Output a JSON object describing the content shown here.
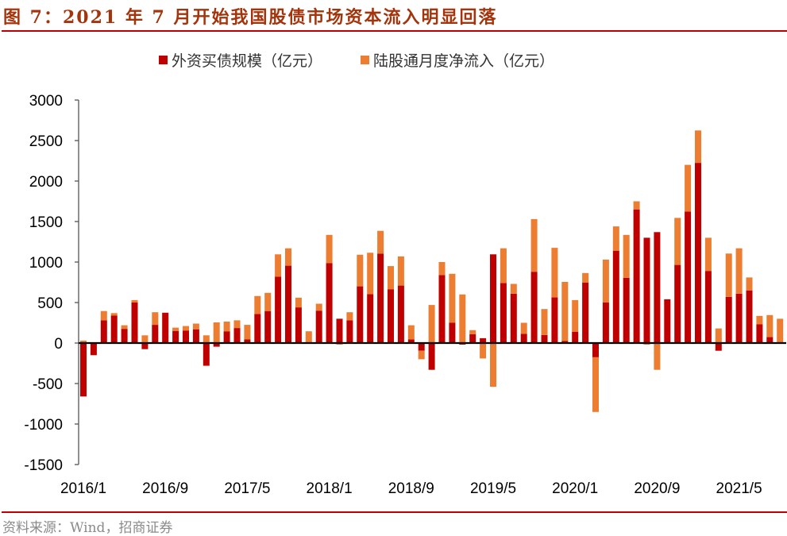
{
  "figure": {
    "title": "图 7：2021 年 7 月开始我国股债市场资本流入明显回落",
    "source": "资料来源：Wind，招商证券"
  },
  "chart_data": {
    "type": "bar",
    "stacked": true,
    "title": "图 7：2021 年 7 月开始我国股债市场资本流入明显回落",
    "xlabel": "",
    "ylabel": "",
    "ylim": [
      -1500,
      3000
    ],
    "yticks": [
      3000,
      2500,
      2000,
      1500,
      1000,
      500,
      0,
      -500,
      -1000,
      -1500
    ],
    "xtick_labels": [
      "2016/1",
      "2016/9",
      "2017/5",
      "2018/1",
      "2018/9",
      "2019/5",
      "2020/1",
      "2020/9",
      "2021/5"
    ],
    "legend_position": "top",
    "grid": false,
    "categories": [
      "2016/1",
      "2016/2",
      "2016/3",
      "2016/4",
      "2016/5",
      "2016/6",
      "2016/7",
      "2016/8",
      "2016/9",
      "2016/10",
      "2016/11",
      "2016/12",
      "2017/1",
      "2017/2",
      "2017/3",
      "2017/4",
      "2017/5",
      "2017/6",
      "2017/7",
      "2017/8",
      "2017/9",
      "2017/10",
      "2017/11",
      "2017/12",
      "2018/1",
      "2018/2",
      "2018/3",
      "2018/4",
      "2018/5",
      "2018/6",
      "2018/7",
      "2018/8",
      "2018/9",
      "2018/10",
      "2018/11",
      "2018/12",
      "2019/1",
      "2019/2",
      "2019/3",
      "2019/4",
      "2019/5",
      "2019/6",
      "2019/7",
      "2019/8",
      "2019/9",
      "2019/10",
      "2019/11",
      "2019/12",
      "2020/1",
      "2020/2",
      "2020/3",
      "2020/4",
      "2020/5",
      "2020/6",
      "2020/7",
      "2020/8",
      "2020/9",
      "2020/10",
      "2020/11",
      "2020/12",
      "2021/1",
      "2021/2",
      "2021/3",
      "2021/4",
      "2021/5",
      "2021/6",
      "2021/7",
      "2021/8",
      "2021/9"
    ],
    "series": [
      {
        "name": "外资买债规模（亿元）",
        "color": "#C00000",
        "values": [
          -660,
          -150,
          280,
          340,
          175,
          500,
          -75,
          225,
          375,
          150,
          155,
          170,
          -280,
          -45,
          145,
          185,
          45,
          360,
          395,
          820,
          955,
          440,
          5,
          400,
          985,
          300,
          280,
          700,
          605,
          1105,
          665,
          710,
          45,
          -95,
          -330,
          840,
          250,
          -20,
          110,
          60,
          1095,
          740,
          610,
          115,
          880,
          100,
          565,
          25,
          140,
          745,
          -175,
          500,
          1140,
          805,
          1650,
          1300,
          1370,
          540,
          965,
          1625,
          2225,
          890,
          -95,
          570,
          610,
          650,
          230,
          75,
          0
        ]
      },
      {
        "name": "陆股通月度净流入（亿元）",
        "color": "#ED7D31",
        "values": [
          30,
          0,
          115,
          30,
          45,
          30,
          95,
          155,
          -10,
          40,
          55,
          70,
          95,
          255,
          120,
          95,
          180,
          220,
          225,
          275,
          215,
          120,
          140,
          85,
          350,
          -20,
          100,
          390,
          510,
          280,
          285,
          360,
          175,
          -105,
          470,
          160,
          605,
          600,
          50,
          -190,
          -540,
          430,
          120,
          135,
          650,
          320,
          610,
          730,
          390,
          120,
          -675,
          530,
          300,
          530,
          100,
          -20,
          -330,
          0,
          580,
          575,
          400,
          410,
          180,
          535,
          560,
          160,
          105,
          270,
          300
        ]
      }
    ]
  }
}
